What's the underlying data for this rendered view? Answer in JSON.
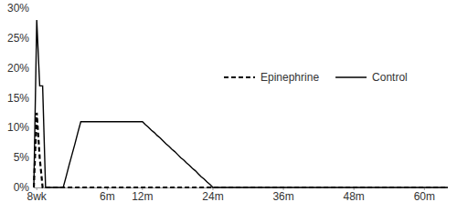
{
  "chart_data": {
    "type": "line",
    "categories": [
      null,
      "8wk",
      null,
      null,
      null,
      null,
      null,
      null,
      null,
      null,
      null,
      null,
      null,
      null,
      null,
      null,
      null,
      null,
      null,
      null,
      null,
      null,
      null,
      null,
      null,
      "6m",
      null,
      null,
      null,
      null,
      null,
      null,
      null,
      null,
      null,
      null,
      null,
      "12m",
      null,
      null,
      null,
      null,
      null,
      null,
      null,
      null,
      null,
      null,
      null,
      null,
      null,
      null,
      null,
      null,
      null,
      null,
      null,
      null,
      null,
      null,
      null,
      "24m",
      null,
      null,
      null,
      null,
      null,
      null,
      null,
      null,
      null,
      null,
      null,
      null,
      null,
      null,
      null,
      null,
      null,
      null,
      null,
      null,
      null,
      null,
      null,
      "36m",
      null,
      null,
      null,
      null,
      null,
      null,
      null,
      null,
      null,
      null,
      null,
      null,
      null,
      null,
      null,
      null,
      null,
      null,
      null,
      null,
      null,
      null,
      null,
      "48m",
      null,
      null,
      null,
      null,
      null,
      null,
      null,
      null,
      null,
      null,
      null,
      null,
      null,
      null,
      null,
      null,
      null,
      null,
      null,
      null,
      null,
      null,
      null,
      "60m",
      null,
      null,
      null,
      null,
      null,
      null,
      null,
      null
    ],
    "series": [
      {
        "name": "Epinephrine",
        "color": "#000000",
        "line_style": "dashed",
        "values": [
          0,
          12.5,
          5,
          0,
          0,
          0,
          0,
          0,
          0,
          0,
          0,
          0,
          0,
          0,
          0,
          0,
          0,
          0,
          0,
          0,
          0,
          0,
          0,
          0,
          0,
          0,
          0,
          0,
          0,
          0,
          0,
          0,
          0,
          0,
          0,
          0,
          0,
          0,
          0,
          0,
          0,
          0,
          0,
          0,
          0,
          0,
          0,
          0,
          0,
          0,
          0,
          0,
          0,
          0,
          0,
          0,
          0,
          0,
          0,
          0,
          0,
          0,
          0,
          0,
          0,
          0,
          0,
          0,
          0,
          0,
          0,
          0,
          0,
          0,
          0,
          0,
          0,
          0,
          0,
          0,
          0,
          0,
          0,
          0,
          0,
          0,
          0,
          0,
          0,
          0,
          0,
          0,
          0,
          0,
          0,
          0,
          0,
          0,
          0,
          0,
          0,
          0,
          0,
          0,
          0,
          0,
          0,
          0,
          0,
          0,
          0,
          0,
          0,
          0,
          0,
          0,
          0,
          0,
          0,
          0,
          0,
          0,
          0,
          0,
          0,
          0,
          0,
          0,
          0,
          0,
          0,
          0,
          0,
          0,
          0,
          0,
          0,
          0,
          0,
          0,
          0,
          0
        ]
      },
      {
        "name": "Control",
        "color": "#000000",
        "line_style": "solid",
        "values": [
          0,
          28,
          17,
          17,
          0,
          0,
          0,
          0,
          0,
          0,
          0,
          1.8,
          3.7,
          5.5,
          7.3,
          9.2,
          11,
          11,
          11,
          11,
          11,
          11,
          11,
          11,
          11,
          11,
          11,
          11,
          11,
          11,
          11,
          11,
          11,
          11,
          11,
          11,
          11,
          11,
          10.5,
          10.1,
          9.6,
          9.2,
          8.7,
          8.3,
          7.8,
          7.3,
          6.9,
          6.4,
          6,
          5.5,
          5,
          4.6,
          4.1,
          3.7,
          3.2,
          2.8,
          2.3,
          1.8,
          1.4,
          0.9,
          0.5,
          0,
          0,
          0,
          0,
          0,
          0,
          0,
          0,
          0,
          0,
          0,
          0,
          0,
          0,
          0,
          0,
          0,
          0,
          0,
          0,
          0,
          0,
          0,
          0,
          0,
          0,
          0,
          0,
          0,
          0,
          0,
          0,
          0,
          0,
          0,
          0,
          0,
          0,
          0,
          0,
          0,
          0,
          0,
          0,
          0,
          0,
          0,
          0,
          0,
          0,
          0,
          0,
          0,
          0,
          0,
          0,
          0,
          0,
          0,
          0,
          0,
          0,
          0,
          0,
          0,
          0,
          0,
          0,
          0,
          0,
          0,
          0,
          0,
          0,
          0,
          0,
          0,
          0,
          0,
          0,
          0
        ]
      }
    ],
    "ylim": [
      0,
      30
    ],
    "yticks": [
      {
        "value": 0,
        "label": "0%"
      },
      {
        "value": 5,
        "label": "5%"
      },
      {
        "value": 10,
        "label": "10%"
      },
      {
        "value": 15,
        "label": "15%"
      },
      {
        "value": 20,
        "label": "20%"
      },
      {
        "value": 25,
        "label": "25%"
      },
      {
        "value": 30,
        "label": "30%"
      }
    ],
    "grid": false,
    "legend": "right"
  }
}
